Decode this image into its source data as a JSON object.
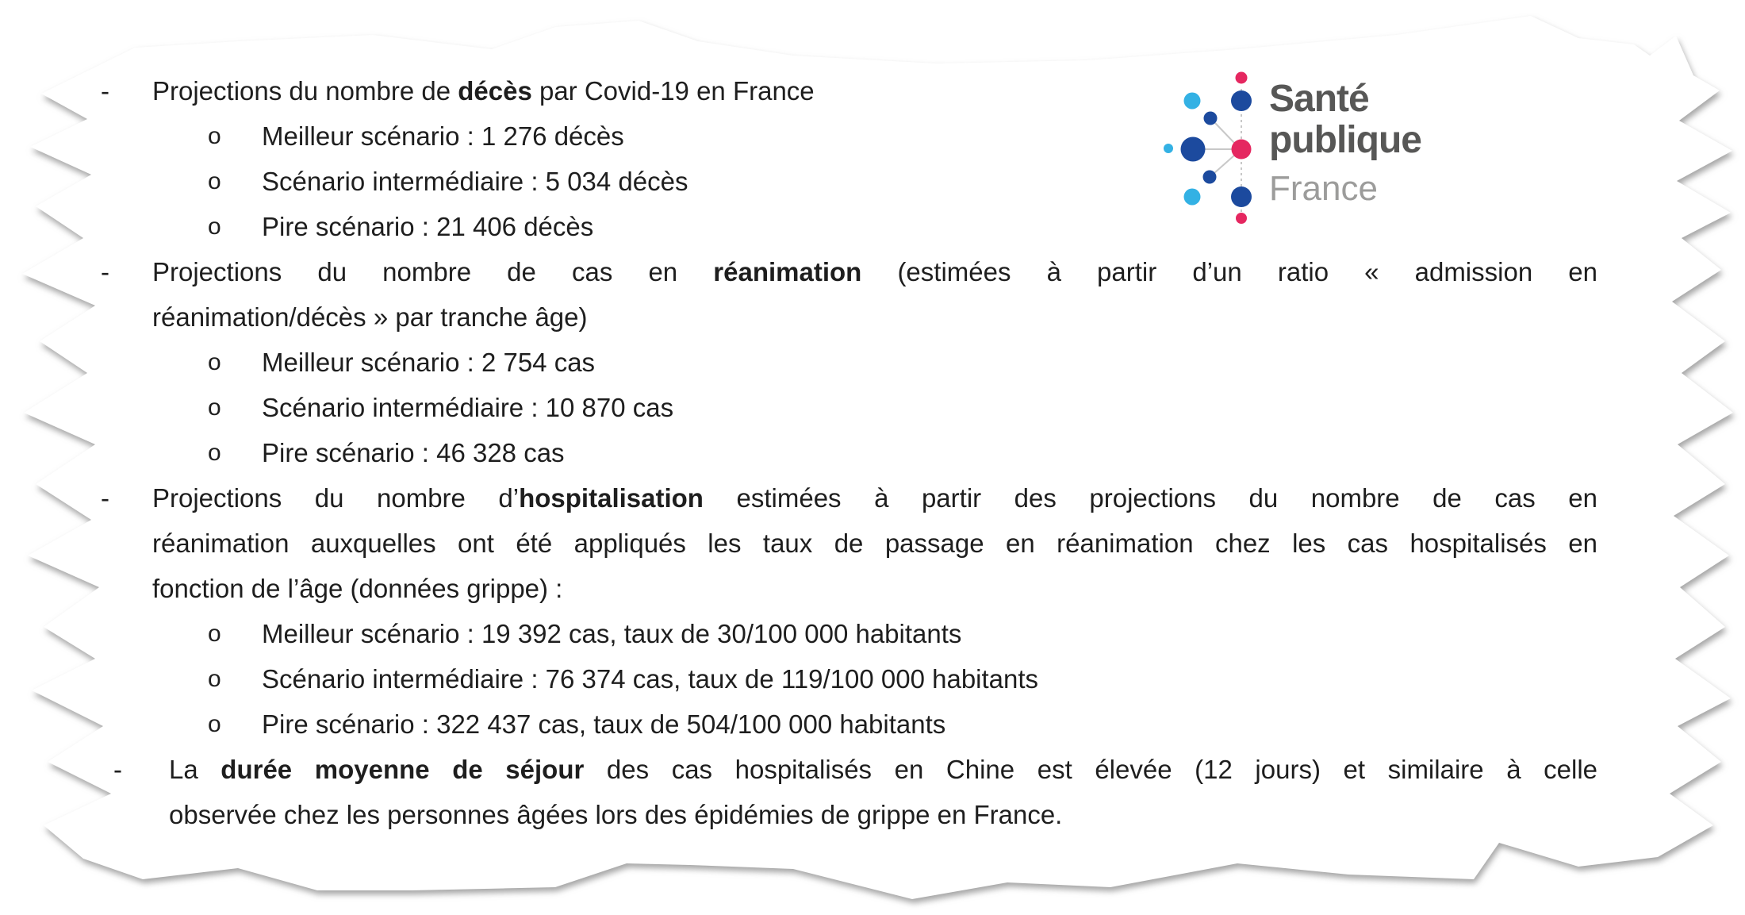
{
  "paper": {
    "fill": "#ffffff"
  },
  "logo": {
    "line1": "Santé",
    "line2": "publique",
    "line3": "France",
    "colors": {
      "navy": "#1c4a9e",
      "light_blue": "#33b1e4",
      "pink": "#e52760",
      "link_gray": "#c8c8c8",
      "title_gray": "#575756",
      "sub_gray": "#9c9c9b"
    }
  },
  "document": {
    "bullets": [
      {
        "marker": "-",
        "lines": [
          {
            "justify": false,
            "segments": [
              {
                "text": "Projections du nombre de "
              },
              {
                "text": "décès",
                "bold": true
              },
              {
                "text": " par Covid-19 en France"
              }
            ]
          }
        ],
        "subitems": [
          {
            "marker": "o",
            "text": "Meilleur scénario : 1 276 décès"
          },
          {
            "marker": "o",
            "text": "Scénario intermédiaire : 5 034 décès"
          },
          {
            "marker": "o",
            "text": "Pire scénario : 21 406 décès"
          }
        ]
      },
      {
        "marker": "-",
        "lines": [
          {
            "justify": true,
            "segments": [
              {
                "text": "Projections du nombre de cas en "
              },
              {
                "text": "réanimation",
                "bold": true
              },
              {
                "text": " (estimées à partir d’un ratio « admission en"
              }
            ]
          },
          {
            "justify": false,
            "segments": [
              {
                "text": "réanimation/décès » par tranche âge)"
              }
            ]
          }
        ],
        "subitems": [
          {
            "marker": "o",
            "text": "Meilleur scénario : 2 754 cas"
          },
          {
            "marker": "o",
            "text": "Scénario intermédiaire : 10 870 cas"
          },
          {
            "marker": "o",
            "text": "Pire scénario : 46 328 cas"
          }
        ]
      },
      {
        "marker": "-",
        "lines": [
          {
            "justify": true,
            "segments": [
              {
                "text": "Projections du nombre d’"
              },
              {
                "text": "hospitalisation",
                "bold": true
              },
              {
                "text": " estimées à partir des projections du nombre de cas en"
              }
            ]
          },
          {
            "justify": true,
            "segments": [
              {
                "text": "réanimation auxquelles ont été appliqués les taux de passage en réanimation chez les cas hospitalisés en"
              }
            ]
          },
          {
            "justify": false,
            "segments": [
              {
                "text": "fonction de l’âge (données grippe) :"
              }
            ]
          }
        ],
        "subitems": [
          {
            "marker": "o",
            "text": "Meilleur scénario : 19 392 cas, taux de 30/100 000 habitants"
          },
          {
            "marker": "o",
            "text": "Scénario intermédiaire : 76 374 cas, taux de 119/100 000 habitants"
          },
          {
            "marker": "o",
            "text": "Pire scénario : 322 437 cas, taux de 504/100 000 habitants"
          }
        ]
      },
      {
        "marker": "-",
        "last": true,
        "lines": [
          {
            "justify": true,
            "segments": [
              {
                "text": "La "
              },
              {
                "text": "durée moyenne de séjour",
                "bold": true
              },
              {
                "text": " des cas hospitalisés en Chine est élevée (12 jours) et similaire à celle"
              }
            ]
          },
          {
            "justify": false,
            "segments": [
              {
                "text": "observée chez les personnes âgées lors des épidémies de grippe en France."
              }
            ]
          }
        ],
        "subitems": []
      }
    ]
  }
}
